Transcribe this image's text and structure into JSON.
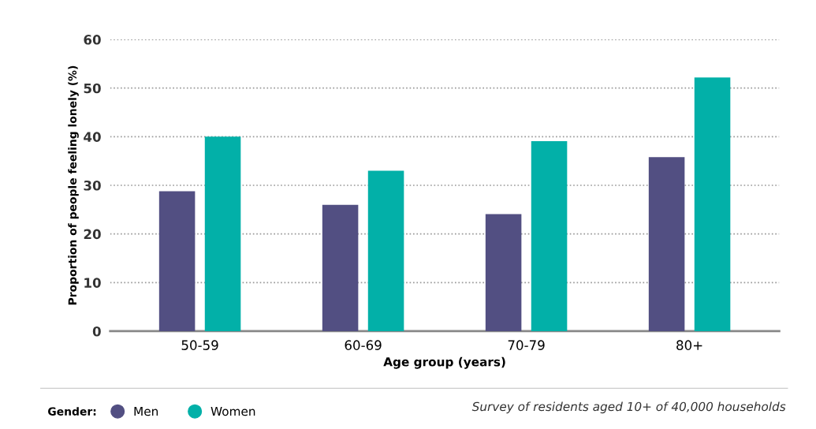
{
  "chart_data": {
    "type": "bar",
    "categories": [
      "50-59",
      "60-69",
      "70-79",
      "80+"
    ],
    "series": [
      {
        "name": "Men",
        "color": "#524f82",
        "values": [
          28.8,
          26,
          24.1,
          35.8
        ]
      },
      {
        "name": "Women",
        "color": "#02b0a8",
        "values": [
          40,
          33,
          39.1,
          52.2
        ]
      }
    ],
    "xlabel": "Age group (years)",
    "ylabel": "Proportion of people feeling lonely (%)",
    "ylim": [
      0,
      60
    ],
    "yticks": [
      0,
      10,
      20,
      30,
      40,
      50,
      60
    ],
    "grid": "y",
    "legend": "bottom left",
    "legend_title": "Gender:",
    "annotations": [
      "Survey of residents aged 10+ of 40,000 households"
    ]
  }
}
